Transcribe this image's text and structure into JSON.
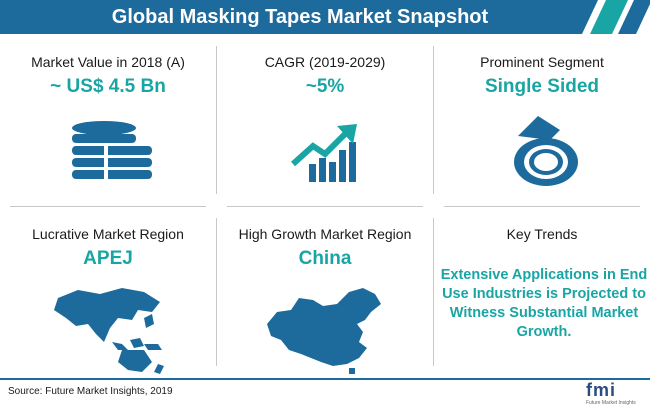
{
  "header": {
    "title": "Global Masking Tapes Market Snapshot"
  },
  "cards": {
    "market_value": {
      "label": "Market Value in 2018 (A)",
      "value": "~ US$ 4.5 Bn",
      "icon": "coin-stack-icon"
    },
    "cagr": {
      "label": "CAGR (2019-2029)",
      "value": "~5%",
      "icon": "growth-chart-icon"
    },
    "prominent_segment": {
      "label": "Prominent Segment",
      "value": "Single Sided",
      "icon": "tape-roll-icon"
    },
    "lucrative_region": {
      "label": "Lucrative Market Region",
      "value": "APEJ",
      "icon": "apej-map-icon"
    },
    "high_growth_region": {
      "label": "High Growth Market Region",
      "value": "China",
      "icon": "china-map-icon"
    },
    "key_trends": {
      "label": "Key Trends",
      "text": "Extensive Applications in End Use Industries is Projected to Witness Substantial Market Growth."
    }
  },
  "footer": {
    "source": "Source: Future Market Insights, 2019",
    "logo_text": "fmi",
    "logo_subtext": "Future Market Insights"
  },
  "colors": {
    "header_bg": "#1d6a9c",
    "accent": "#1aa5a5",
    "icon_blue": "#1d6a9c"
  }
}
